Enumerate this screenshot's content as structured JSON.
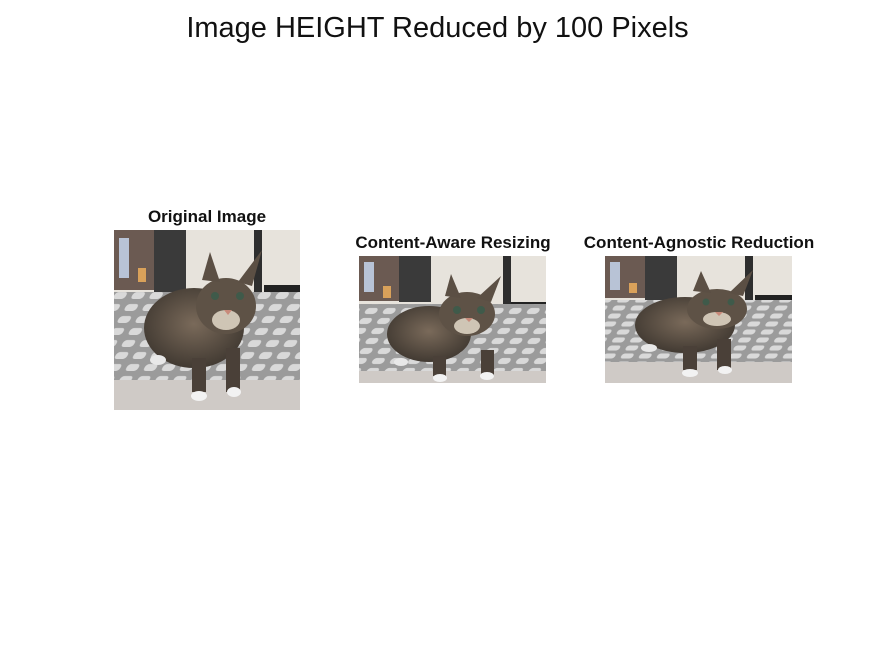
{
  "figure": {
    "title": "Image HEIGHT Reduced by 100 Pixels"
  },
  "panels": [
    {
      "title": "Original Image",
      "image_alt": "Tabby cat standing on a gray and white patterned rug indoors"
    },
    {
      "title": "Content-Aware Resizing",
      "image_alt": "Same tabby cat photo with height reduced using content-aware seam carving"
    },
    {
      "title": "Content-Agnostic Reduction",
      "image_alt": "Same tabby cat photo with height reduced by uniform scaling"
    }
  ]
}
